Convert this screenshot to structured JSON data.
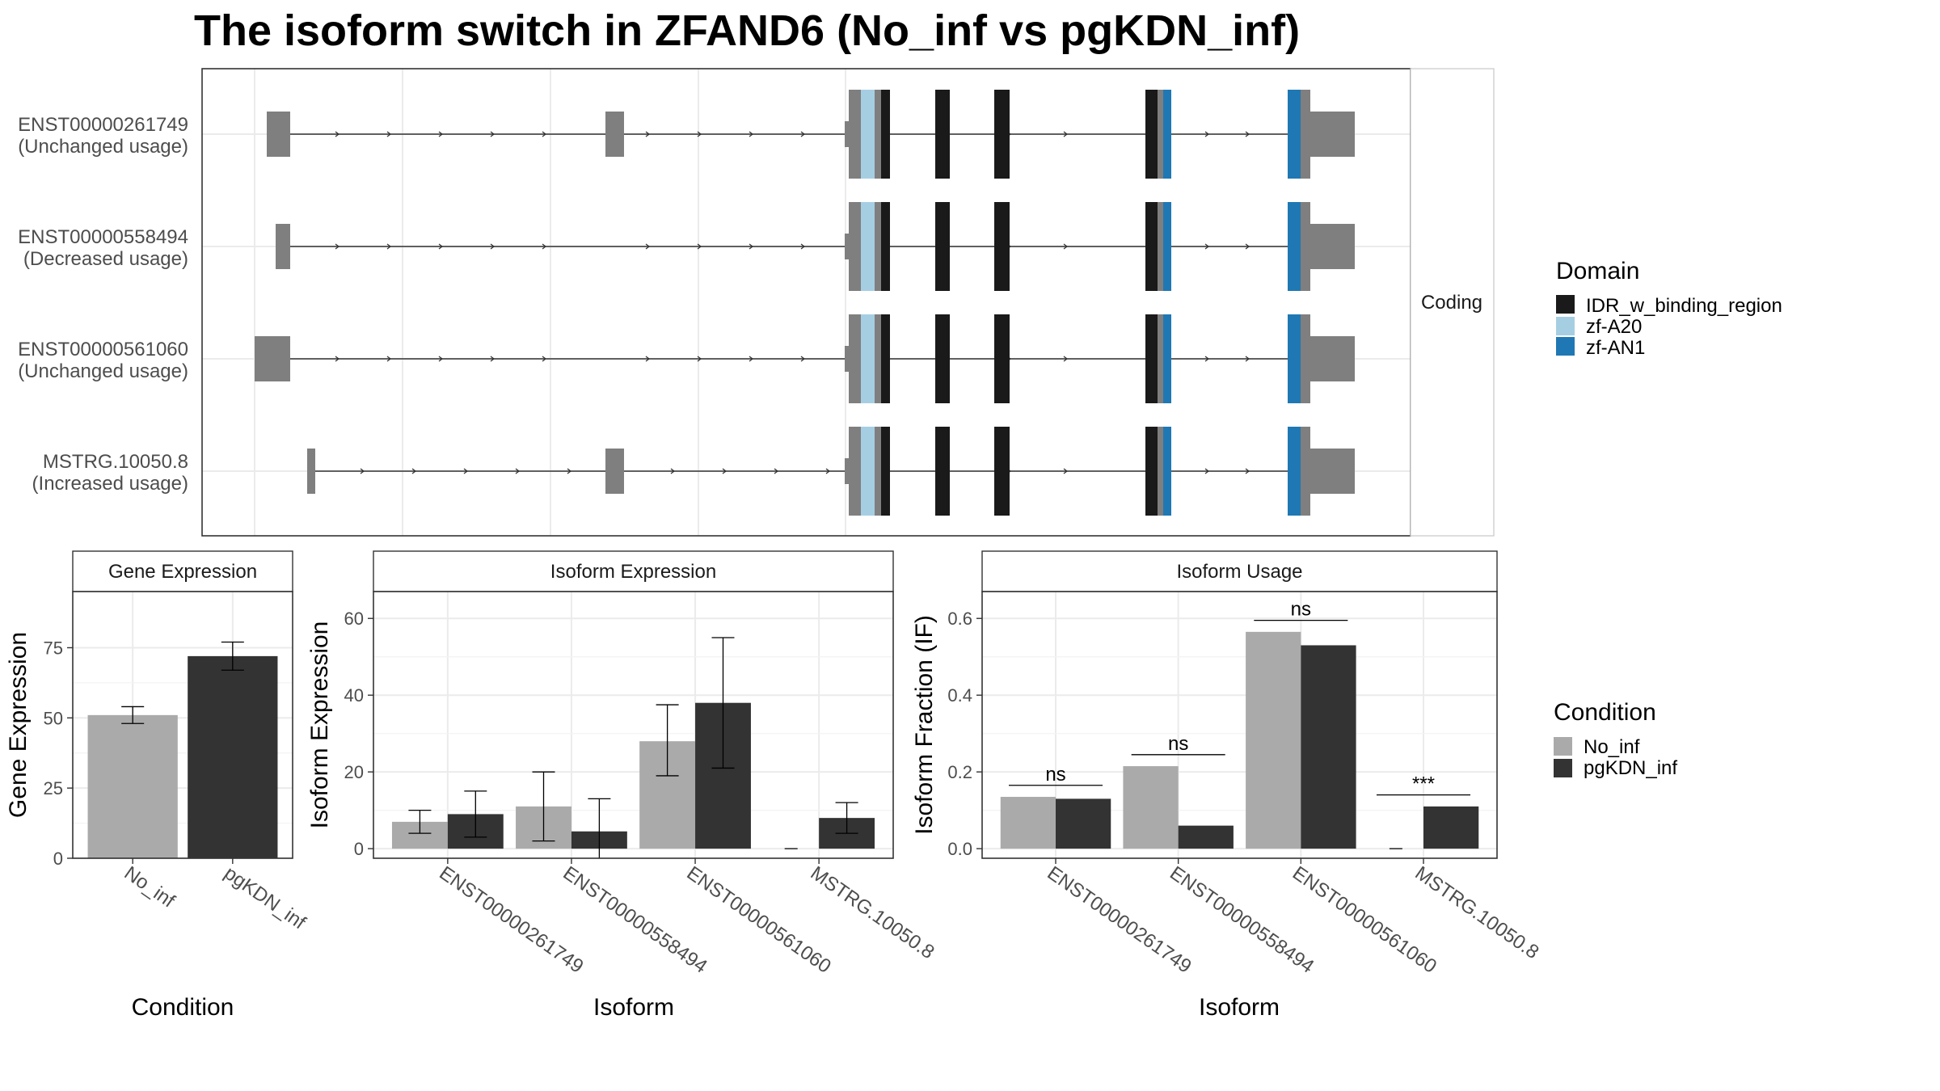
{
  "title": "The isoform switch in ZFAND6 (No_inf vs pgKDN_inf)",
  "colors": {
    "exon": "#7f7f7f",
    "IDR_w_binding_region": "#1a1a1a",
    "zf-A20": "#a6cee3",
    "zf-AN1": "#1f78b4",
    "No_inf": "#aaaaaa",
    "pgKDN_inf": "#333333"
  },
  "structure_panel": {
    "facet_label": "Coding",
    "isoforms": [
      {
        "id": "ENST00000261749",
        "status": "(Unchanged usage)"
      },
      {
        "id": "ENST00000558494",
        "status": "(Decreased usage)"
      },
      {
        "id": "ENST00000561060",
        "status": "(Unchanged usage)"
      },
      {
        "id": "MSTRG.10050.8",
        "status": "(Increased usage)"
      }
    ]
  },
  "legends": {
    "domain": {
      "title": "Domain",
      "items": [
        {
          "label": "IDR_w_binding_region",
          "color": "#1a1a1a"
        },
        {
          "label": "zf-A20",
          "color": "#a6cee3"
        },
        {
          "label": "zf-AN1",
          "color": "#1f78b4"
        }
      ]
    },
    "condition": {
      "title": "Condition",
      "items": [
        {
          "label": "No_inf",
          "color": "#aaaaaa"
        },
        {
          "label": "pgKDN_inf",
          "color": "#333333"
        }
      ]
    }
  },
  "chart_data": [
    {
      "type": "bar",
      "strip": "Gene Expression",
      "xlabel": "Condition",
      "ylabel": "Gene Expression",
      "ylim": [
        0,
        95
      ],
      "yticks": [
        0,
        25,
        50,
        75
      ],
      "categories": [
        "No_inf",
        "pgKDN_inf"
      ],
      "values": [
        51,
        72
      ],
      "error_low": [
        48,
        67
      ],
      "error_high": [
        54,
        77
      ],
      "grid": true
    },
    {
      "type": "bar",
      "strip": "Isoform Expression",
      "xlabel": "Isoform",
      "ylabel": "Isoform Expression",
      "ylim": [
        -2.5,
        67
      ],
      "yticks": [
        0,
        20,
        40,
        60
      ],
      "categories": [
        "ENST00000261749",
        "ENST00000558494",
        "ENST00000561060",
        "MSTRG.10050.8"
      ],
      "series": [
        {
          "name": "No_inf",
          "values": [
            7,
            11,
            28,
            0
          ],
          "error_low": [
            4,
            2,
            19,
            0
          ],
          "error_high": [
            10,
            20,
            37.5,
            0
          ]
        },
        {
          "name": "pgKDN_inf",
          "values": [
            9,
            4.5,
            38,
            8
          ],
          "error_low": [
            3,
            -5,
            21,
            4
          ],
          "error_high": [
            15,
            13,
            55,
            12
          ]
        }
      ],
      "grid": true
    },
    {
      "type": "bar",
      "strip": "Isoform Usage",
      "xlabel": "Isoform",
      "ylabel": "Isoform Fraction (IF)",
      "ylim": [
        -0.025,
        0.67
      ],
      "yticks": [
        0.0,
        0.2,
        0.4,
        0.6
      ],
      "ytick_labels": [
        "0.0",
        "0.2",
        "0.4",
        "0.6"
      ],
      "categories": [
        "ENST00000261749",
        "ENST00000558494",
        "ENST00000561060",
        "MSTRG.10050.8"
      ],
      "series": [
        {
          "name": "No_inf",
          "values": [
            0.135,
            0.215,
            0.565,
            0.0
          ]
        },
        {
          "name": "pgKDN_inf",
          "values": [
            0.13,
            0.06,
            0.53,
            0.11
          ]
        }
      ],
      "significance": [
        "ns",
        "ns",
        "ns",
        "***"
      ],
      "significance_y": [
        0.165,
        0.245,
        0.595,
        0.14
      ],
      "grid": true
    }
  ]
}
